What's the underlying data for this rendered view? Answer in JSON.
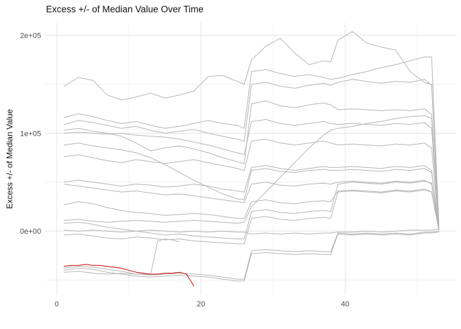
{
  "title": "Excess +/- of Median Value Over Time",
  "chart_data": {
    "type": "line",
    "title": "Excess +/- of Median Value Over Time",
    "xlabel": "",
    "ylabel": "Excess +/- of Median Value",
    "xlim": [
      -1.7,
      55.5
    ],
    "ylim": [
      -65000,
      213000
    ],
    "grid": true,
    "legend": "none",
    "x_ticks": [
      {
        "value": 0,
        "label": "0"
      },
      {
        "value": 20,
        "label": "20"
      },
      {
        "value": 40,
        "label": "40"
      }
    ],
    "x_minor": [
      10,
      30,
      50
    ],
    "y_ticks": [
      {
        "value": 0,
        "label": "0e+00"
      },
      {
        "value": 100000,
        "label": "1e+05"
      },
      {
        "value": 200000,
        "label": "2e+05"
      }
    ],
    "y_minor": [
      -50000,
      50000,
      150000
    ],
    "colors": {
      "line_default": "#b5b5b5",
      "highlight": "#cc0000",
      "grid_major": "#e5e5e5",
      "grid_minor": "#f2f2f2",
      "tick_text": "#4d4d4d",
      "title_text": "#111111"
    },
    "x_common": [
      1,
      3,
      5,
      7,
      9,
      11,
      13,
      15,
      17,
      19,
      21,
      23,
      25,
      26,
      27,
      29,
      31,
      33,
      35,
      37,
      38,
      39,
      41,
      43,
      45,
      47,
      49,
      51,
      52,
      53
    ],
    "series": [
      {
        "name": "series-01",
        "color": "#b5b5b5",
        "y": [
          148000,
          157000,
          154000,
          139000,
          134000,
          137000,
          141000,
          136000,
          139000,
          143000,
          158000,
          159000,
          153000,
          150000,
          175000,
          189000,
          197000,
          182000,
          170000,
          174000,
          173000,
          195000,
          204000,
          192000,
          188000,
          185000,
          163000,
          152000,
          150000,
          6000
        ]
      },
      {
        "name": "series-02",
        "color": "#b5b5b5",
        "y": [
          116000,
          120000,
          117000,
          113000,
          110000,
          112000,
          108000,
          105000,
          107000,
          110000,
          113000,
          110000,
          108000,
          105000,
          163000,
          165000,
          161000,
          158000,
          160000,
          157000,
          155000,
          156000,
          160000,
          163000,
          167000,
          170000,
          174000,
          178000,
          178000,
          8000
        ]
      },
      {
        "name": "series-03",
        "color": "#b5b5b5",
        "y": [
          109000,
          113000,
          111000,
          108000,
          105000,
          107000,
          103000,
          100000,
          102000,
          104000,
          100000,
          97000,
          94000,
          92000,
          150000,
          152000,
          148000,
          146000,
          149000,
          151000,
          149000,
          152000,
          155000,
          153000,
          151000,
          153000,
          152000,
          155000,
          149000,
          5000
        ]
      },
      {
        "name": "series-04",
        "color": "#b5b5b5",
        "y": [
          103000,
          105000,
          102000,
          100000,
          97000,
          90000,
          82000,
          85000,
          87000,
          84000,
          80000,
          75000,
          71000,
          69000,
          130000,
          133000,
          128000,
          126000,
          129000,
          131000,
          129000,
          124000,
          125000,
          124000,
          123000,
          124000,
          123000,
          125000,
          119000,
          4000
        ]
      },
      {
        "name": "series-05",
        "color": "#b5b5b5",
        "y": [
          100000,
          101000,
          100000,
          99000,
          100000,
          98000,
          97000,
          96000,
          94000,
          91000,
          88000,
          84000,
          80000,
          78000,
          112000,
          114000,
          110000,
          108000,
          110000,
          112000,
          110000,
          109000,
          110000,
          109000,
          108000,
          110000,
          109000,
          111000,
          105000,
          3000
        ]
      },
      {
        "name": "series-06",
        "color": "#b5b5b5",
        "y": [
          76000,
          78000,
          75000,
          72000,
          70000,
          73000,
          71000,
          69000,
          71000,
          73000,
          70000,
          67000,
          64000,
          62000,
          92000,
          94000,
          90000,
          88000,
          90000,
          92000,
          90000,
          88000,
          89000,
          88000,
          87000,
          89000,
          88000,
          90000,
          85000,
          2000
        ]
      },
      {
        "name": "series-07",
        "color": "#b5b5b5",
        "y": [
          88000,
          90000,
          87000,
          85000,
          83000,
          80000,
          75000,
          68000,
          60000,
          52000,
          45000,
          38000,
          33000,
          32000,
          62000,
          64000,
          61000,
          60000,
          62000,
          63000,
          62000,
          62000,
          63000,
          62000,
          61000,
          63000,
          62000,
          64000,
          60000,
          1000
        ]
      },
      {
        "name": "series-08",
        "color": "#b5b5b5",
        "y": [
          50000,
          52000,
          50000,
          48000,
          46000,
          48000,
          47000,
          45000,
          46000,
          48000,
          46000,
          43000,
          41000,
          40000,
          65000,
          67000,
          64000,
          62000,
          64000,
          66000,
          65000,
          65000,
          66000,
          65000,
          64000,
          66000,
          65000,
          67000,
          62000,
          1000
        ]
      },
      {
        "name": "series-09",
        "color": "#b5b5b5",
        "y": [
          48000,
          46000,
          44000,
          42000,
          40000,
          41000,
          39000,
          37000,
          38000,
          36000,
          34000,
          32000,
          30000,
          29000,
          48000,
          50000,
          47000,
          46000,
          48000,
          49000,
          48000,
          50000,
          51000,
          50000,
          49000,
          51000,
          50000,
          52000,
          48000,
          1000
        ]
      },
      {
        "name": "series-10",
        "color": "#b5b5b5",
        "y": [
          27000,
          30000,
          28000,
          24000,
          21000,
          19000,
          18000,
          16000,
          17000,
          18000,
          17000,
          15000,
          13000,
          13000,
          30000,
          32000,
          29000,
          28000,
          30000,
          31000,
          30000,
          41000,
          42000,
          41000,
          40000,
          42000,
          41000,
          43000,
          40000,
          1000
        ]
      },
      {
        "name": "series-11",
        "color": "#b5b5b5",
        "y": [
          11000,
          12000,
          10000,
          9000,
          10000,
          11000,
          10000,
          9000,
          10000,
          11000,
          10000,
          9000,
          8000,
          9000,
          25000,
          40000,
          55000,
          70000,
          85000,
          98000,
          103000,
          105000,
          107000,
          110000,
          112000,
          115000,
          117000,
          118000,
          115000,
          3000
        ]
      },
      {
        "name": "series-12",
        "color": "#b5b5b5",
        "y": [
          1000,
          0,
          1000,
          0,
          -1000,
          0,
          1000,
          0,
          -1000,
          0,
          -1000,
          0,
          -1000,
          -1000,
          -3000,
          -2000,
          -3000,
          -2000,
          -3000,
          -2000,
          -2000,
          -1000,
          -1000,
          0,
          -1000,
          0,
          1000,
          1000,
          1000,
          2000
        ]
      },
      {
        "name": "series-13",
        "color": "#b5b5b5",
        "y": [
          8000,
          9000,
          7000,
          4000,
          2000,
          0,
          -2000,
          -4000,
          -3000,
          -5000,
          -6000,
          -7000,
          -8000,
          -8000,
          20000,
          22000,
          19000,
          18000,
          20000,
          21000,
          20000,
          48000,
          50000,
          49000,
          48000,
          50000,
          49000,
          51000,
          49000,
          2000
        ]
      },
      {
        "name": "series-14",
        "color": "#b5b5b5",
        "y": [
          -4000,
          -3000,
          -5000,
          -7000,
          -8000,
          -6000,
          -7000,
          -9000,
          -8000,
          -10000,
          -11000,
          -12000,
          -13000,
          -13000,
          13000,
          15000,
          12000,
          11000,
          13000,
          14000,
          13000,
          40000,
          41000,
          40000,
          39000,
          41000,
          40000,
          42000,
          40000,
          1000
        ]
      },
      {
        "name": "series-17",
        "color": "#b5b5b5",
        "y": [
          -38000,
          -36000,
          -37000,
          -39000,
          -41000,
          -44000,
          -45000,
          -44000,
          -43000,
          -44000,
          -45000,
          -47000,
          -49000,
          -49000,
          -20000,
          -19000,
          -20000,
          -21000,
          -20000,
          -21000,
          -21000,
          -2000,
          -3000,
          -2000,
          -3000,
          -2000,
          -3000,
          -1000,
          -1000,
          0
        ]
      },
      {
        "name": "series-18",
        "color": "#b5b5b5",
        "y": [
          -40000,
          -38000,
          -39000,
          -42000,
          -44000,
          -46000,
          -47000,
          -46000,
          -45000,
          -46000,
          -47000,
          -49000,
          -51000,
          -51000,
          -23000,
          -22000,
          -23000,
          -24000,
          -23000,
          -24000,
          -24000,
          -3000,
          -4000,
          -3000,
          -4000,
          -3000,
          -4000,
          -2000,
          -2000,
          -1000
        ]
      },
      {
        "name": "series-short",
        "color": "#b5b5b5",
        "x": [
          1,
          3,
          5,
          7,
          9,
          11,
          13,
          14,
          15,
          16,
          17
        ],
        "y": [
          -42000,
          -41000,
          -43000,
          -44000,
          -43000,
          -44000,
          -44000,
          -10000,
          -8000,
          -9000,
          -11000
        ]
      },
      {
        "name": "series-highlight-red",
        "color": "#cc0000",
        "x": [
          1,
          2,
          3,
          4,
          5,
          6,
          7,
          8,
          9,
          10,
          11,
          12,
          13,
          14,
          15,
          16,
          17,
          18,
          19
        ],
        "y": [
          -36000,
          -35000,
          -35000,
          -34000,
          -35000,
          -35000,
          -36000,
          -37000,
          -38000,
          -40000,
          -42000,
          -43000,
          -44000,
          -44000,
          -43000,
          -43000,
          -42000,
          -44000,
          -56000
        ]
      }
    ]
  }
}
